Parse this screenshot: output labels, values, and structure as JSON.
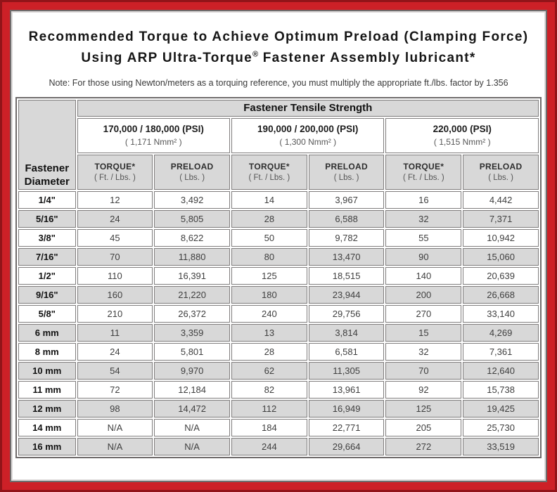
{
  "colors": {
    "frame_red": "#cd2027",
    "frame_dark_edge": "#911419",
    "panel_border_gray": "#6f6b6b",
    "header_gray": "#d8d8d8",
    "cell_border_gray": "#7f7d7d",
    "text_dark": "#3f3f3f"
  },
  "header": {
    "title_line1": "Recommended Torque to Achieve Optimum Preload (Clamping Force)",
    "title_line2_pre": "Using ARP Ultra-Torque",
    "title_line2_sup": "®",
    "title_line2_post": " Fastener Assembly lubricant*",
    "note": "Note: For those using Newton/meters as a torquing reference, you must multiply the appropriate ft./lbs. factor by 1.356"
  },
  "table": {
    "corner_header_line1": "Fastener",
    "corner_header_line2": "Diameter",
    "group_title": "Fastener Tensile Strength",
    "strength_groups": [
      {
        "psi": "170,000 / 180,000 (PSI)",
        "nmm": "( 1,171 Nmm² )"
      },
      {
        "psi": "190,000 / 200,000 (PSI)",
        "nmm": "( 1,300 Nmm² )"
      },
      {
        "psi": "220,000 (PSI)",
        "nmm": "( 1,515 Nmm² )"
      }
    ],
    "col_headers": {
      "torque": "TORQUE*",
      "torque_unit": "( Ft. / Lbs. )",
      "preload": "PRELOAD",
      "preload_unit": "( Lbs. )"
    },
    "rows": [
      {
        "diameter": "1/4\"",
        "values": [
          "12",
          "3,492",
          "14",
          "3,967",
          "16",
          "4,442"
        ]
      },
      {
        "diameter": "5/16\"",
        "values": [
          "24",
          "5,805",
          "28",
          "6,588",
          "32",
          "7,371"
        ]
      },
      {
        "diameter": "3/8\"",
        "values": [
          "45",
          "8,622",
          "50",
          "9,782",
          "55",
          "10,942"
        ]
      },
      {
        "diameter": "7/16\"",
        "values": [
          "70",
          "11,880",
          "80",
          "13,470",
          "90",
          "15,060"
        ]
      },
      {
        "diameter": "1/2\"",
        "values": [
          "110",
          "16,391",
          "125",
          "18,515",
          "140",
          "20,639"
        ]
      },
      {
        "diameter": "9/16\"",
        "values": [
          "160",
          "21,220",
          "180",
          "23,944",
          "200",
          "26,668"
        ]
      },
      {
        "diameter": "5/8\"",
        "values": [
          "210",
          "26,372",
          "240",
          "29,756",
          "270",
          "33,140"
        ]
      },
      {
        "diameter": "6 mm",
        "values": [
          "11",
          "3,359",
          "13",
          "3,814",
          "15",
          "4,269"
        ]
      },
      {
        "diameter": "8 mm",
        "values": [
          "24",
          "5,801",
          "28",
          "6,581",
          "32",
          "7,361"
        ]
      },
      {
        "diameter": "10 mm",
        "values": [
          "54",
          "9,970",
          "62",
          "11,305",
          "70",
          "12,640"
        ]
      },
      {
        "diameter": "11 mm",
        "values": [
          "72",
          "12,184",
          "82",
          "13,961",
          "92",
          "15,738"
        ]
      },
      {
        "diameter": "12 mm",
        "values": [
          "98",
          "14,472",
          "112",
          "16,949",
          "125",
          "19,425"
        ]
      },
      {
        "diameter": "14 mm",
        "values": [
          "N/A",
          "N/A",
          "184",
          "22,771",
          "205",
          "25,730"
        ]
      },
      {
        "diameter": "16 mm",
        "values": [
          "N/A",
          "N/A",
          "244",
          "29,664",
          "272",
          "33,519"
        ]
      }
    ]
  }
}
